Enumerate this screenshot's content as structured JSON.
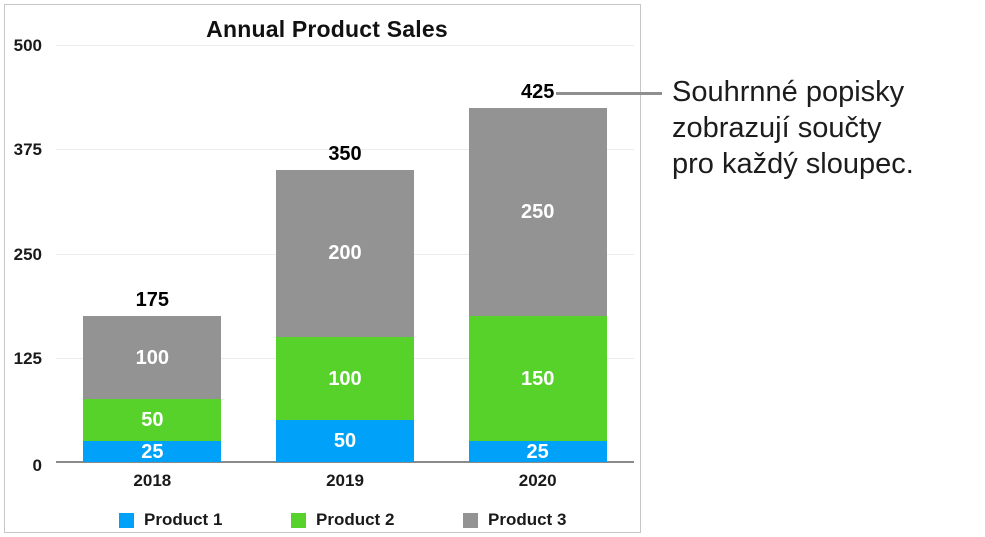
{
  "title": "Annual Product Sales",
  "annotation": {
    "lines": [
      "Souhrnné popisky",
      "zobrazují součty",
      "pro každý sloupec."
    ]
  },
  "chart_data": {
    "type": "bar",
    "subtype": "stacked",
    "title": "Annual Product Sales",
    "categories": [
      "2018",
      "2019",
      "2020"
    ],
    "series": [
      {
        "name": "Product 1",
        "color": "#00A1F8",
        "values": [
          25,
          50,
          25
        ]
      },
      {
        "name": "Product 2",
        "color": "#56D22B",
        "values": [
          50,
          100,
          150
        ]
      },
      {
        "name": "Product 3",
        "color": "#939393",
        "values": [
          100,
          200,
          250
        ]
      }
    ],
    "totals": [
      175,
      350,
      425
    ],
    "xlabel": "",
    "ylabel": "",
    "ylim": [
      0,
      500
    ],
    "yticks": [
      0,
      125,
      250,
      375,
      500
    ],
    "grid": true,
    "legend_position": "bottom",
    "segment_label_color": "#ffffff",
    "total_label_color": "#000000",
    "annotation_target_total": 425
  }
}
